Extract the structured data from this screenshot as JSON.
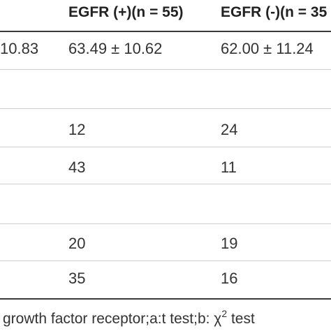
{
  "table": {
    "headers": {
      "egfr_pos": "EGFR (+)(n = 55)",
      "egfr_neg": "EGFR (-)(n = 35"
    },
    "rows": [
      {
        "c0": "10.83",
        "c1": "63.49 ± 10.62",
        "c2": "62.00 ± 11.24"
      },
      {
        "c0": "",
        "c1": "",
        "c2": ""
      },
      {
        "c0": "",
        "c1": "12",
        "c2": "24"
      },
      {
        "c0": "",
        "c1": "43",
        "c2": "11"
      },
      {
        "c0": "",
        "c1": "",
        "c2": ""
      },
      {
        "c0": "",
        "c1": "20",
        "c2": "19"
      },
      {
        "c0": "",
        "c1": "35",
        "c2": "16"
      }
    ]
  },
  "footnote": {
    "text": "growth factor receptor;a:t test;b: χ",
    "sup": "2",
    "tail": " test"
  }
}
